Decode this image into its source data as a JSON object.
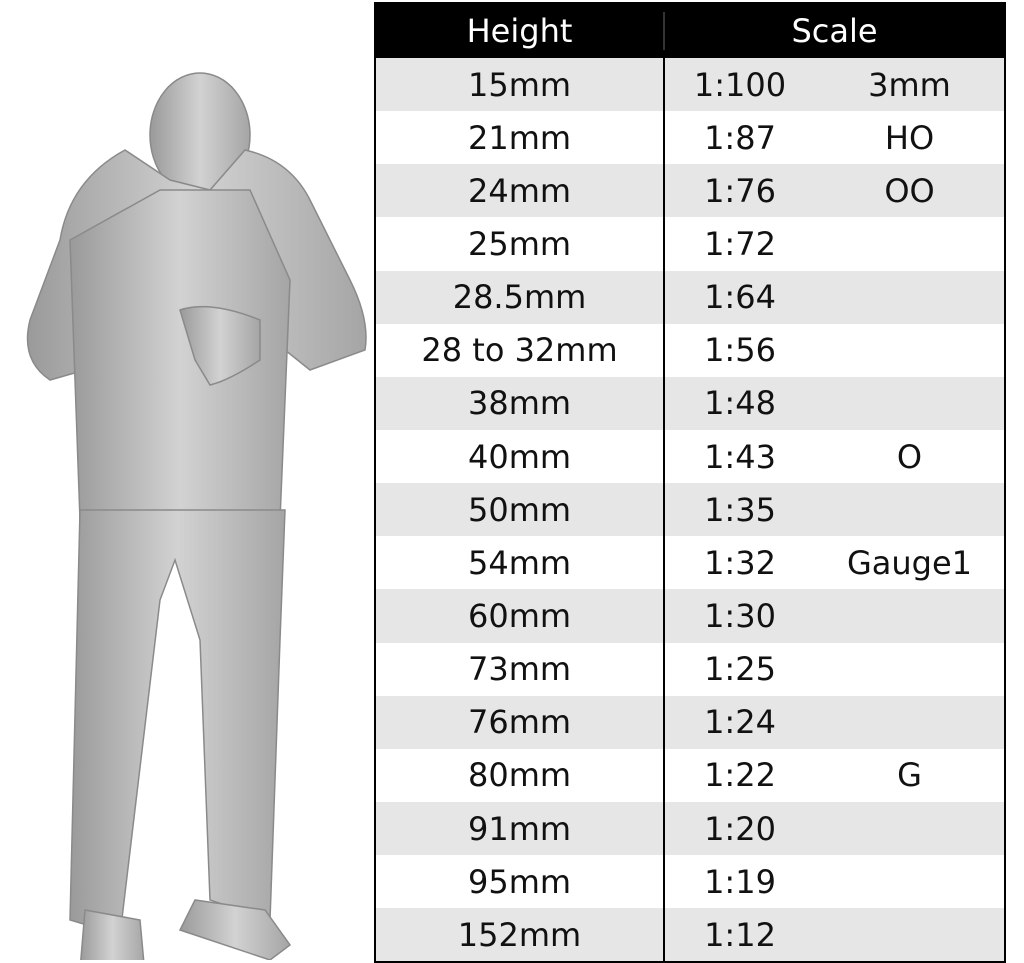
{
  "table": {
    "headers": [
      "Height",
      "Scale"
    ],
    "rows": [
      {
        "height": "15mm",
        "scale": "1:100",
        "gauge": "3mm"
      },
      {
        "height": "21mm",
        "scale": "1:87",
        "gauge": "HO"
      },
      {
        "height": "24mm",
        "scale": "1:76",
        "gauge": "OO"
      },
      {
        "height": "25mm",
        "scale": "1:72",
        "gauge": ""
      },
      {
        "height": "28.5mm",
        "scale": "1:64",
        "gauge": ""
      },
      {
        "height": "28 to 32mm",
        "scale": "1:56",
        "gauge": ""
      },
      {
        "height": "38mm",
        "scale": "1:48",
        "gauge": ""
      },
      {
        "height": "40mm",
        "scale": "1:43",
        "gauge": "O"
      },
      {
        "height": "50mm",
        "scale": "1:35",
        "gauge": ""
      },
      {
        "height": "54mm",
        "scale": "1:32",
        "gauge": "Gauge1"
      },
      {
        "height": "60mm",
        "scale": "1:30",
        "gauge": ""
      },
      {
        "height": "73mm",
        "scale": "1:25",
        "gauge": ""
      },
      {
        "height": "76mm",
        "scale": "1:24",
        "gauge": ""
      },
      {
        "height": "80mm",
        "scale": "1:22",
        "gauge": "G"
      },
      {
        "height": "91mm",
        "scale": "1:20",
        "gauge": ""
      },
      {
        "height": "95mm",
        "scale": "1:19",
        "gauge": ""
      },
      {
        "height": "152mm",
        "scale": "1:12",
        "gauge": ""
      }
    ]
  },
  "colors": {
    "header_bg": "#000000",
    "stripe": "#e6e6e6",
    "figure": "#bdbdbd"
  }
}
